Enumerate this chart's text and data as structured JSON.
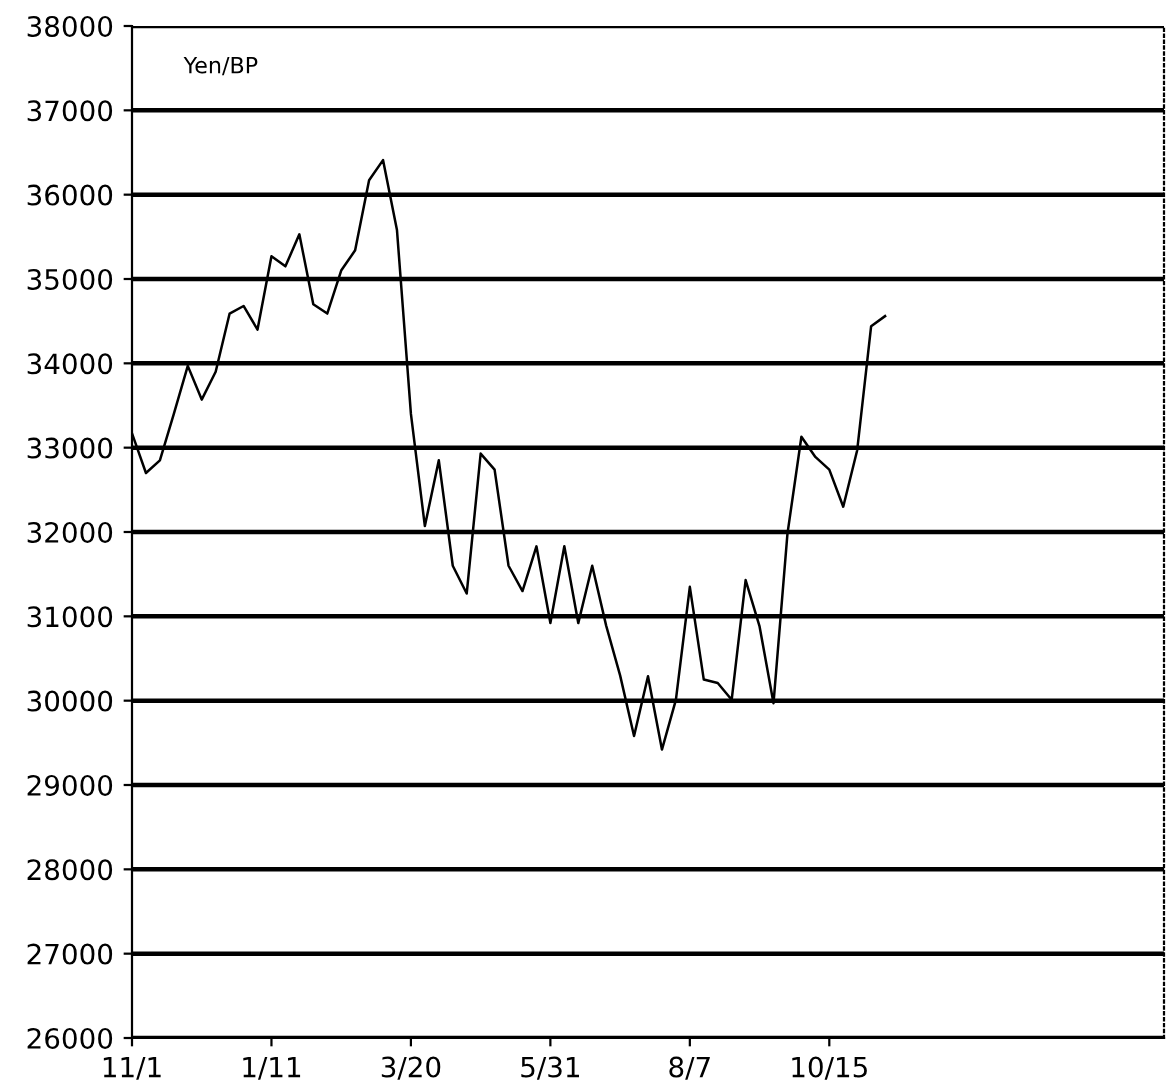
{
  "chart_data": {
    "type": "line",
    "title": "Yen/BP",
    "categories": [
      "11/1",
      null,
      null,
      null,
      null,
      null,
      null,
      null,
      null,
      null,
      "1/11",
      null,
      null,
      null,
      null,
      null,
      null,
      null,
      null,
      null,
      "3/20",
      null,
      null,
      null,
      null,
      null,
      null,
      null,
      null,
      null,
      "5/31",
      null,
      null,
      null,
      null,
      null,
      null,
      null,
      null,
      null,
      "8/7",
      null,
      null,
      null,
      null,
      null,
      null,
      null,
      null,
      null,
      "10/15",
      null,
      null,
      null,
      null,
      null,
      null,
      null,
      null,
      null,
      null,
      null,
      null,
      null,
      null,
      null,
      null,
      null,
      null,
      null,
      null,
      null,
      null,
      null,
      null
    ],
    "series": [
      {
        "color": "#000000",
        "values": [
          33170,
          32700,
          32850,
          33400,
          33970,
          33570,
          33900,
          34590,
          34680,
          34400,
          35270,
          35150,
          35530,
          34700,
          34590,
          35100,
          35340,
          36170,
          36410,
          35580,
          33400,
          32070,
          32850,
          31600,
          31270,
          32930,
          32740,
          31600,
          31300,
          31830,
          30920,
          31830,
          30920,
          31600,
          30890,
          30300,
          29580,
          30290,
          29420,
          30010,
          31350,
          30250,
          30210,
          30010,
          31430,
          30880,
          29970,
          31980,
          33130,
          32890,
          32740,
          32300,
          32970,
          34440,
          34560,
          null,
          null,
          null,
          null,
          null,
          null,
          null,
          null,
          null,
          null,
          null,
          null,
          null,
          null,
          null,
          null,
          null,
          null,
          null,
          null
        ]
      }
    ],
    "ylim": [
      26000,
      38000
    ],
    "yticks": [
      26000,
      27000,
      28000,
      29000,
      30000,
      31000,
      32000,
      33000,
      34000,
      35000,
      36000,
      37000,
      38000
    ],
    "grid": "y",
    "marker": "none",
    "line_style": "solid"
  }
}
